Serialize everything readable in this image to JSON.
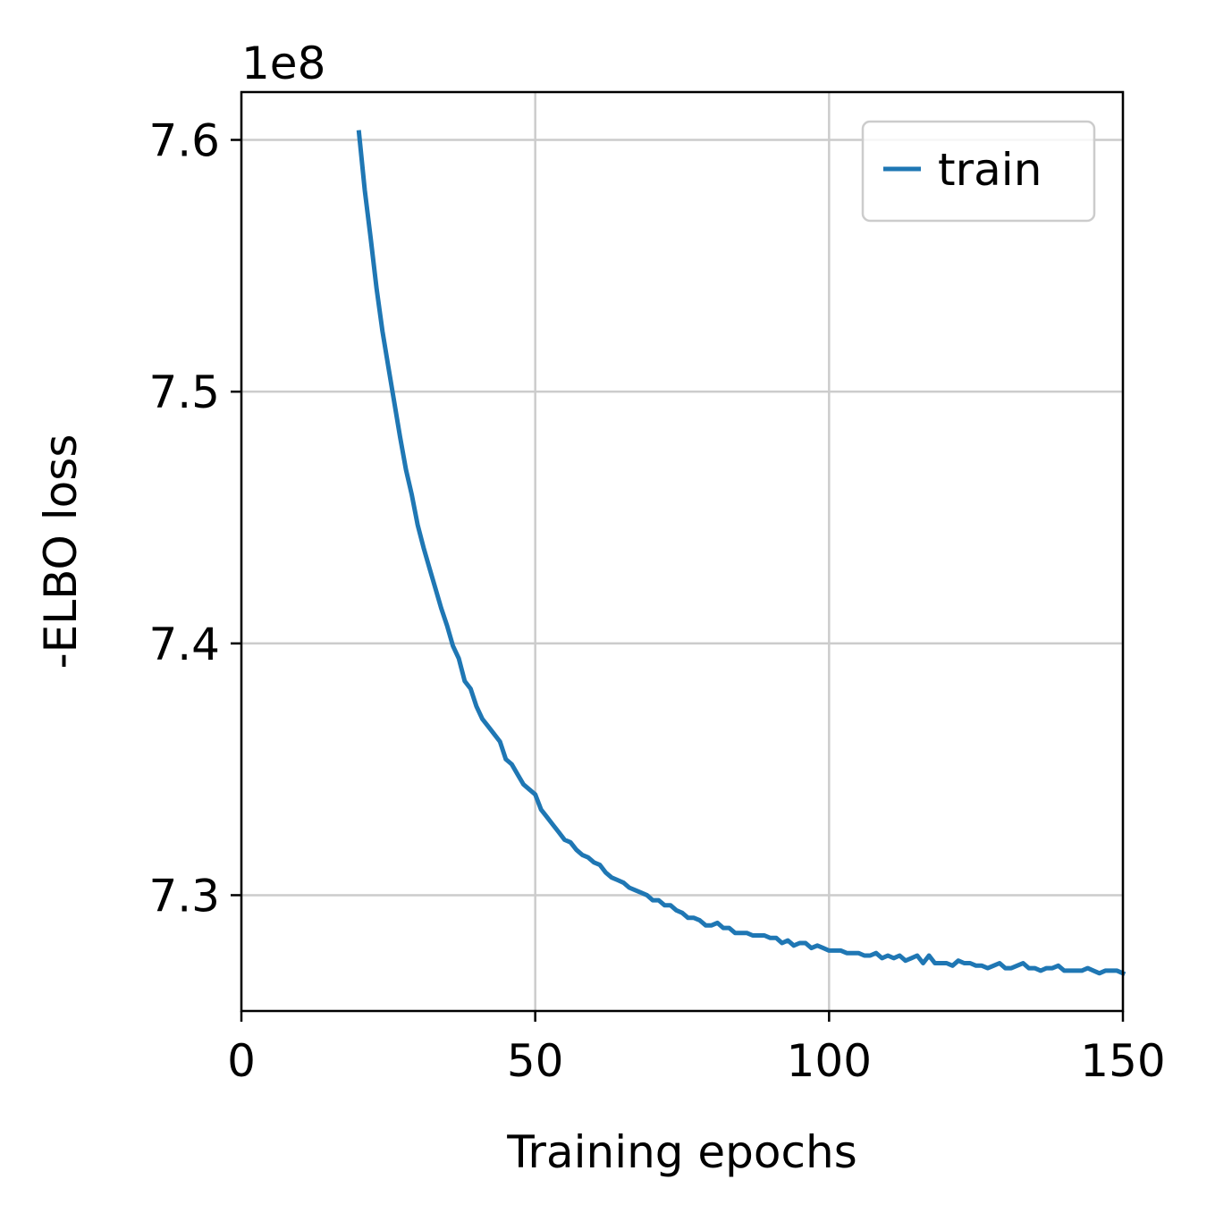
{
  "chart_data": {
    "type": "line",
    "xlabel": "Training epochs",
    "ylabel": "-ELBO loss",
    "offset_label": "1e8",
    "xlim": [
      0,
      150
    ],
    "ylim": [
      7.254,
      7.619
    ],
    "xticks": [
      0,
      50,
      100,
      150
    ],
    "xtick_labels": [
      "0",
      "50",
      "100",
      "150"
    ],
    "yticks": [
      7.3,
      7.4,
      7.5,
      7.6
    ],
    "ytick_labels": [
      "7.3",
      "7.4",
      "7.5",
      "7.6"
    ],
    "grid": true,
    "legend": {
      "position": "top-right",
      "entries": [
        "train"
      ]
    },
    "series": [
      {
        "name": "train",
        "color": "#1f77b4",
        "x": [
          20,
          21,
          22,
          23,
          24,
          25,
          26,
          27,
          28,
          29,
          30,
          31,
          32,
          33,
          34,
          35,
          36,
          37,
          38,
          39,
          40,
          41,
          42,
          43,
          44,
          45,
          46,
          47,
          48,
          49,
          50,
          51,
          52,
          53,
          54,
          55,
          56,
          57,
          58,
          59,
          60,
          61,
          62,
          63,
          64,
          65,
          66,
          67,
          68,
          69,
          70,
          71,
          72,
          73,
          74,
          75,
          76,
          77,
          78,
          79,
          80,
          81,
          82,
          83,
          84,
          85,
          86,
          87,
          88,
          89,
          90,
          91,
          92,
          93,
          94,
          95,
          96,
          97,
          98,
          99,
          100,
          101,
          102,
          103,
          104,
          105,
          106,
          107,
          108,
          109,
          110,
          111,
          112,
          113,
          114,
          115,
          116,
          117,
          118,
          119,
          120,
          121,
          122,
          123,
          124,
          125,
          126,
          127,
          128,
          129,
          130,
          131,
          132,
          133,
          134,
          135,
          136,
          137,
          138,
          139,
          140,
          141,
          142,
          143,
          144,
          145,
          146,
          147,
          148,
          149,
          150
        ],
        "y": [
          7.603,
          7.58,
          7.561,
          7.541,
          7.524,
          7.51,
          7.496,
          7.482,
          7.469,
          7.459,
          7.447,
          7.438,
          7.43,
          7.422,
          7.414,
          7.407,
          7.399,
          7.394,
          7.385,
          7.382,
          7.375,
          7.37,
          7.367,
          7.364,
          7.361,
          7.354,
          7.352,
          7.348,
          7.344,
          7.342,
          7.34,
          7.334,
          7.331,
          7.328,
          7.325,
          7.322,
          7.321,
          7.318,
          7.316,
          7.315,
          7.313,
          7.312,
          7.309,
          7.307,
          7.306,
          7.305,
          7.303,
          7.302,
          7.301,
          7.3,
          7.298,
          7.298,
          7.296,
          7.296,
          7.294,
          7.293,
          7.291,
          7.291,
          7.29,
          7.288,
          7.288,
          7.289,
          7.287,
          7.287,
          7.285,
          7.285,
          7.285,
          7.284,
          7.284,
          7.284,
          7.283,
          7.283,
          7.281,
          7.282,
          7.28,
          7.281,
          7.281,
          7.279,
          7.28,
          7.279,
          7.278,
          7.278,
          7.278,
          7.277,
          7.277,
          7.277,
          7.276,
          7.276,
          7.277,
          7.275,
          7.276,
          7.275,
          7.276,
          7.274,
          7.275,
          7.276,
          7.273,
          7.276,
          7.273,
          7.273,
          7.273,
          7.272,
          7.274,
          7.273,
          7.273,
          7.272,
          7.272,
          7.271,
          7.272,
          7.273,
          7.271,
          7.271,
          7.272,
          7.273,
          7.271,
          7.271,
          7.27,
          7.271,
          7.271,
          7.272,
          7.27,
          7.27,
          7.27,
          7.27,
          7.271,
          7.27,
          7.269,
          7.27,
          7.27,
          7.27,
          7.269
        ]
      }
    ]
  }
}
